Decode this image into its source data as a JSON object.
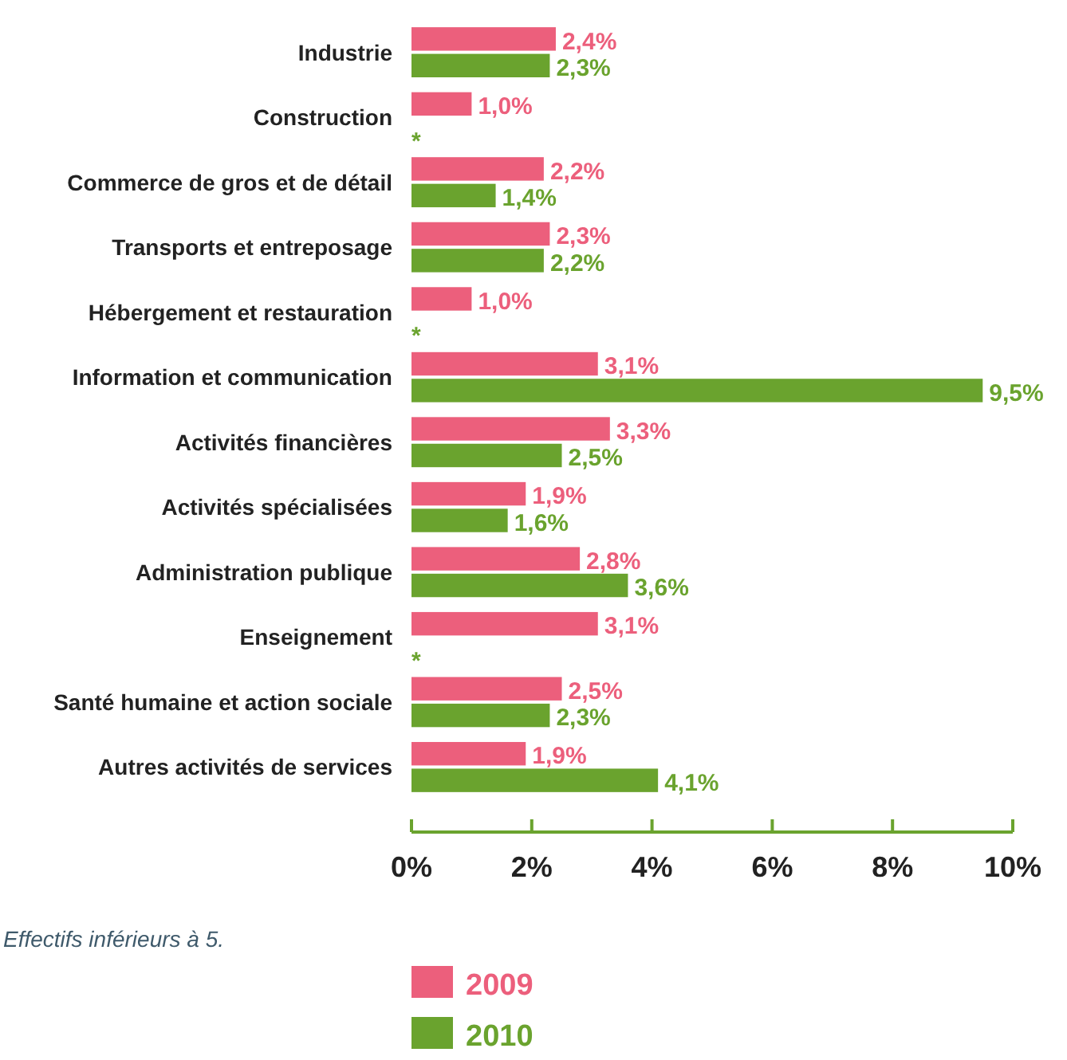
{
  "chart_data": {
    "type": "bar",
    "orientation": "horizontal",
    "categories": [
      "Industrie",
      "Construction",
      "Commerce de gros et de détail",
      "Transports et entreposage",
      "Hébergement et restauration",
      "Information et communication",
      "Activités financières",
      "Activités spécialisées",
      "Administration publique",
      "Enseignement",
      "Santé humaine et action sociale",
      "Autres activités de services"
    ],
    "series": [
      {
        "name": "2009",
        "color": "#ec5f7c",
        "values": [
          2.4,
          1.0,
          2.2,
          2.3,
          1.0,
          3.1,
          3.3,
          1.9,
          2.8,
          3.1,
          2.5,
          1.9
        ],
        "value_labels": [
          "2,4%",
          "1,0%",
          "2,2%",
          "2,3%",
          "1,0%",
          "3,1%",
          "3,3%",
          "1,9%",
          "2,8%",
          "3,1%",
          "2,5%",
          "1,9%"
        ]
      },
      {
        "name": "2010",
        "color": "#6aa32e",
        "values": [
          2.3,
          null,
          1.4,
          2.2,
          null,
          9.5,
          2.5,
          1.6,
          3.6,
          null,
          2.3,
          4.1
        ],
        "value_labels": [
          "2,3%",
          "*",
          "1,4%",
          "2,2%",
          "*",
          "9,5%",
          "2,5%",
          "1,6%",
          "3,6%",
          "*",
          "2,3%",
          "4,1%"
        ]
      }
    ],
    "xlim": [
      0,
      10
    ],
    "xticks": [
      {
        "value": 0,
        "label": "0%"
      },
      {
        "value": 2,
        "label": "2%"
      },
      {
        "value": 4,
        "label": "4%"
      },
      {
        "value": 6,
        "label": "6%"
      },
      {
        "value": 8,
        "label": "8%"
      },
      {
        "value": 10,
        "label": "10%"
      }
    ],
    "grid": false,
    "legend": "bottom",
    "annotations": [
      "Effectifs inférieurs à 5."
    ]
  }
}
